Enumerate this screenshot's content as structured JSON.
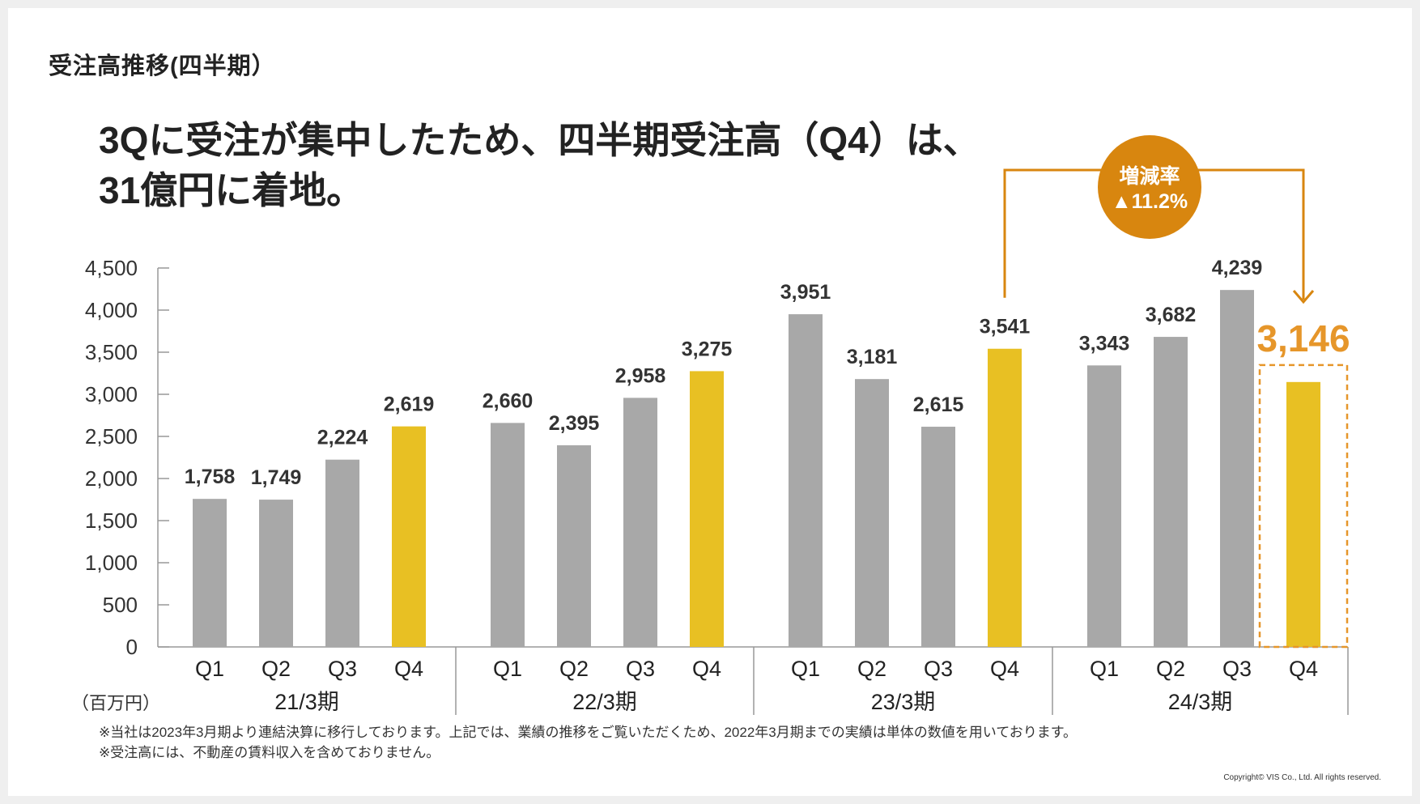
{
  "section_title": "受注高推移(四半期）",
  "headline": {
    "line1": "3Qに受注が集中したため、四半期受注高（Q4）は、",
    "line2": "31億円に着地。"
  },
  "chart_data": {
    "type": "bar",
    "unit_label": "（百万円）",
    "ylim": [
      0,
      4500
    ],
    "yticks": [
      0,
      500,
      1000,
      1500,
      2000,
      2500,
      3000,
      3500,
      4000,
      4500
    ],
    "ytick_labels": [
      "0",
      "500",
      "1,000",
      "1,500",
      "2,000",
      "2,500",
      "3,000",
      "3,500",
      "4,000",
      "4,500"
    ],
    "groups": [
      {
        "label": "21/3期",
        "quarters": [
          "Q1",
          "Q2",
          "Q3",
          "Q4"
        ],
        "values": [
          1758,
          1749,
          2224,
          2619
        ],
        "value_labels": [
          "1,758",
          "1,749",
          "2,224",
          "2,619"
        ]
      },
      {
        "label": "22/3期",
        "quarters": [
          "Q1",
          "Q2",
          "Q3",
          "Q4"
        ],
        "values": [
          2660,
          2395,
          2958,
          3275
        ],
        "value_labels": [
          "2,660",
          "2,395",
          "2,958",
          "3,275"
        ]
      },
      {
        "label": "23/3期",
        "quarters": [
          "Q1",
          "Q2",
          "Q3",
          "Q4"
        ],
        "values": [
          3951,
          3181,
          2615,
          3541
        ],
        "value_labels": [
          "3,951",
          "3,181",
          "2,615",
          "3,541"
        ]
      },
      {
        "label": "24/3期",
        "quarters": [
          "Q1",
          "Q2",
          "Q3",
          "Q4"
        ],
        "values": [
          3343,
          3682,
          4239,
          3146
        ],
        "value_labels": [
          "3,343",
          "3,682",
          "4,239",
          "3,146"
        ]
      }
    ],
    "colors": {
      "q1_q3": "#a8a8a8",
      "q4": "#e8c023",
      "highlight_text": "#e6962a",
      "accent_circle": "#d8860f",
      "axis": "#999999"
    },
    "callout": {
      "label": "増減率",
      "value": "▲11.2%"
    }
  },
  "footnotes": [
    "※当社は2023年3月期より連結決算に移行しております。上記では、業績の推移をご覧いただくため、2022年3月期までの実績は単体の数値を用いております。",
    "※受注高には、不動産の賃料収入を含めておりません。"
  ],
  "copyright": "Copyright© VIS Co., Ltd. All rights reserved."
}
